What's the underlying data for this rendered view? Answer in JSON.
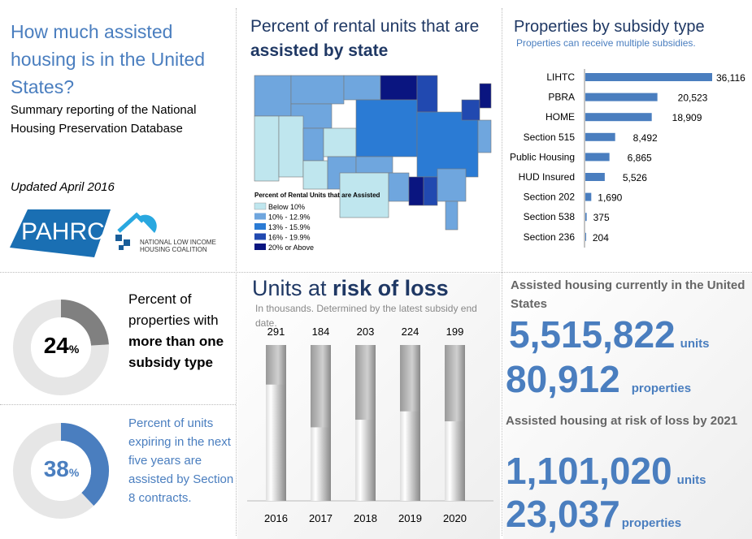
{
  "header": {
    "title": "How much assisted housing is in the United States?",
    "subtitle": "Summary reporting of the National Housing Preservation Database",
    "updated": "Updated April 2016"
  },
  "logos": {
    "pahrc": "PAHRC",
    "nlihc": "NATIONAL LOW INCOME HOUSING COALITION"
  },
  "colors": {
    "accent": "#4a7ebf",
    "navy": "#1f3864",
    "gray_arc": "#808080"
  },
  "map": {
    "title_pre": "Percent of rental units that are ",
    "title_bold": "assisted by state",
    "legend_title": "Percent of Rental Units that are Assisted",
    "legend": [
      {
        "label": "Below 10%",
        "color": "#bfe6ee"
      },
      {
        "label": "10% - 12.9%",
        "color": "#6fa6de"
      },
      {
        "label": "13% - 15.9%",
        "color": "#2b7bd4"
      },
      {
        "label": "16% - 19.9%",
        "color": "#2149b0"
      },
      {
        "label": "20% or Above",
        "color": "#0a1580"
      }
    ]
  },
  "chart_data": [
    {
      "type": "bar",
      "orientation": "horizontal",
      "title": "Properties by subsidy type",
      "subtitle": "Properties can receive multiple subsidies.",
      "categories": [
        "LIHTC",
        "PBRA",
        "HOME",
        "Section 515",
        "Public Housing",
        "HUD Insured",
        "Section 202",
        "Section 538",
        "Section 236"
      ],
      "values": [
        36116,
        20523,
        18909,
        8492,
        6865,
        5526,
        1690,
        375,
        204
      ],
      "value_labels": [
        "36,116",
        "20,523",
        "18,909",
        "8,492",
        "6,865",
        "5,526",
        "1,690",
        "375",
        "204"
      ],
      "color": "#4a7ebf"
    },
    {
      "type": "bar",
      "title_pre": "Units at ",
      "title_bold": "risk of loss",
      "subtitle": "In thousands. Determined by the latest subsidy end date.",
      "categories": [
        "2016",
        "2017",
        "2018",
        "2019",
        "2020"
      ],
      "values": [
        291,
        184,
        203,
        224,
        199
      ],
      "ylim": [
        0,
        390
      ],
      "grid": false
    },
    {
      "type": "pie",
      "style": "donut",
      "value": 24,
      "label": "24",
      "unit": "%",
      "color": "#808080"
    },
    {
      "type": "pie",
      "style": "donut",
      "value": 38,
      "label": "38",
      "unit": "%",
      "color": "#4a7ebf"
    }
  ],
  "donut1": {
    "text_pre": "Percent of properties with ",
    "text_bold": "more than one subsidy type"
  },
  "donut2": {
    "text": "Percent of units expiring in the next five years are assisted by Section 8 contracts."
  },
  "stats": {
    "current": {
      "heading": "Assisted housing currently in the United States",
      "units": "5,515,822",
      "units_label": "units",
      "properties": "80,912",
      "properties_label": "properties"
    },
    "risk": {
      "heading": "Assisted housing at risk of loss by 2021",
      "units": "1,101,020",
      "units_label": "units",
      "properties": "23,037",
      "properties_label": "properties"
    }
  }
}
